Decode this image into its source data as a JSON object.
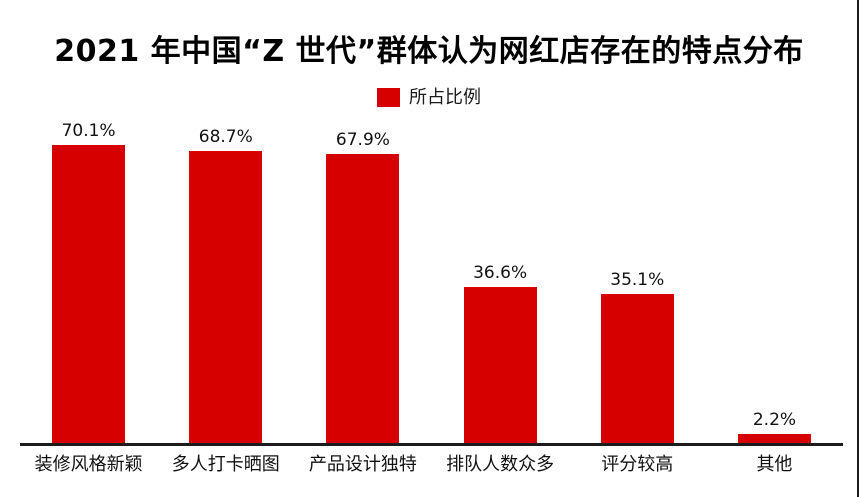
{
  "title": "2021 年中国“Z 世代”群体认为网红店存在的特点分布",
  "legend": {
    "label": "所占比例",
    "swatch_color": "#d60000"
  },
  "colors": {
    "bar": "#d60000",
    "axis": "#1c1c1c",
    "text": "#111111"
  },
  "chart_data": {
    "type": "bar",
    "title": "2021 年中国“Z 世代”群体认为网红店存在的特点分布",
    "categories": [
      "装修风格新颖",
      "多人打卡晒图",
      "产品设计独特",
      "排队人数众多",
      "评分较高",
      "其他"
    ],
    "values": [
      70.1,
      68.7,
      67.9,
      36.6,
      35.1,
      2.2
    ],
    "value_labels": [
      "70.1%",
      "68.7%",
      "67.9%",
      "36.6%",
      "35.1%",
      "2.2%"
    ],
    "series_name": "所占比例",
    "xlabel": "",
    "ylabel": "",
    "ylim": [
      0,
      78
    ],
    "grid": false,
    "legend_position": "top-center",
    "data_labels": "above-bars"
  }
}
